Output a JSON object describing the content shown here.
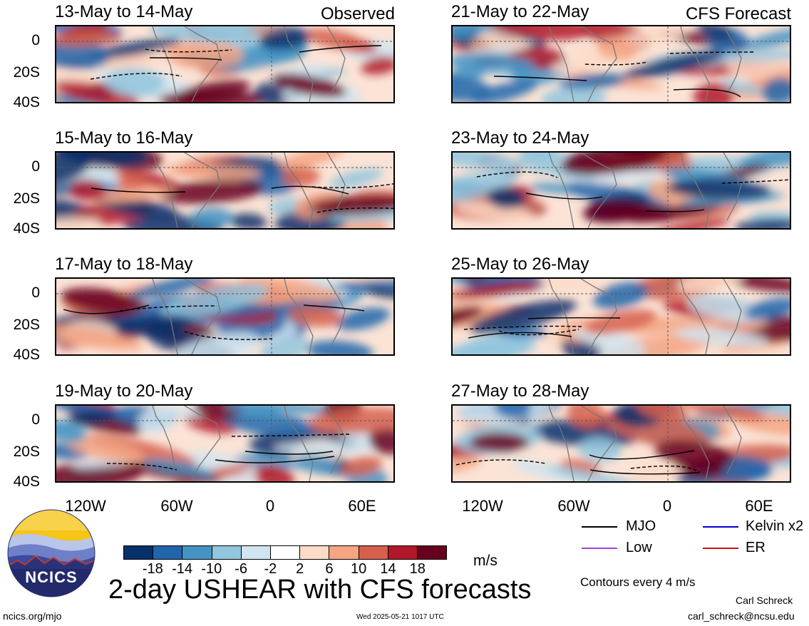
{
  "panels_left_tag": "Observed",
  "panels_right_tag": "CFS Forecast",
  "left_titles": [
    "13-May to 14-May",
    "15-May to 16-May",
    "17-May to 18-May",
    "19-May to 20-May"
  ],
  "right_titles": [
    "21-May to 22-May",
    "23-May to 24-May",
    "25-May to 26-May",
    "27-May to 28-May"
  ],
  "y_ticks": [
    "0",
    "20S",
    "40S"
  ],
  "x_ticks": [
    "120W",
    "60W",
    "0",
    "60E"
  ],
  "legend": {
    "mjo": "MJO",
    "low": "Low",
    "kelvin": "Kelvin x2",
    "er": "ER",
    "mjo_color": "#000000",
    "low_color": "#a040e0",
    "kelvin_color": "#0000dd",
    "er_color": "#cc1111"
  },
  "colorbar": {
    "labels": [
      "-18",
      "-14",
      "-10",
      "-6",
      "-2",
      "2",
      "6",
      "10",
      "14",
      "18"
    ],
    "colors": [
      "#08306b",
      "#2166ac",
      "#4393c3",
      "#92c5de",
      "#d1e5f0",
      "#ffffff",
      "#fddbc7",
      "#f4a582",
      "#d6604d",
      "#b2182b",
      "#67001f"
    ],
    "unit": "m/s"
  },
  "main_title": "2-day USHEAR with CFS forecasts",
  "contours_note": "Contours every 4 m/s",
  "author": "Carl Schreck",
  "email": "carl_schreck@ncsu.edu",
  "url": "ncics.org/mjo",
  "timestamp": "Wed 2025-05-21 1017 UTC",
  "logo_text": "NCICS",
  "chart_data": {
    "type": "heatmap",
    "title": "2-day USHEAR with CFS forecasts",
    "unit": "m/s",
    "x_ticks": [
      "120W",
      "60W",
      "0",
      "60E"
    ],
    "y_ticks": [
      "0",
      "20S",
      "40S"
    ],
    "color_levels": [
      -18,
      -14,
      -10,
      -6,
      -2,
      2,
      6,
      10,
      14,
      18
    ],
    "panels": [
      "13-May to 14-May",
      "15-May to 16-May",
      "17-May to 18-May",
      "19-May to 20-May",
      "21-May to 22-May",
      "23-May to 24-May",
      "25-May to 26-May",
      "27-May to 28-May"
    ],
    "contour_interval": "Contours every 4 m/s",
    "series": [
      {
        "name": "MJO"
      },
      {
        "name": "Low"
      },
      {
        "name": "Kelvin x2"
      },
      {
        "name": "ER"
      }
    ]
  }
}
